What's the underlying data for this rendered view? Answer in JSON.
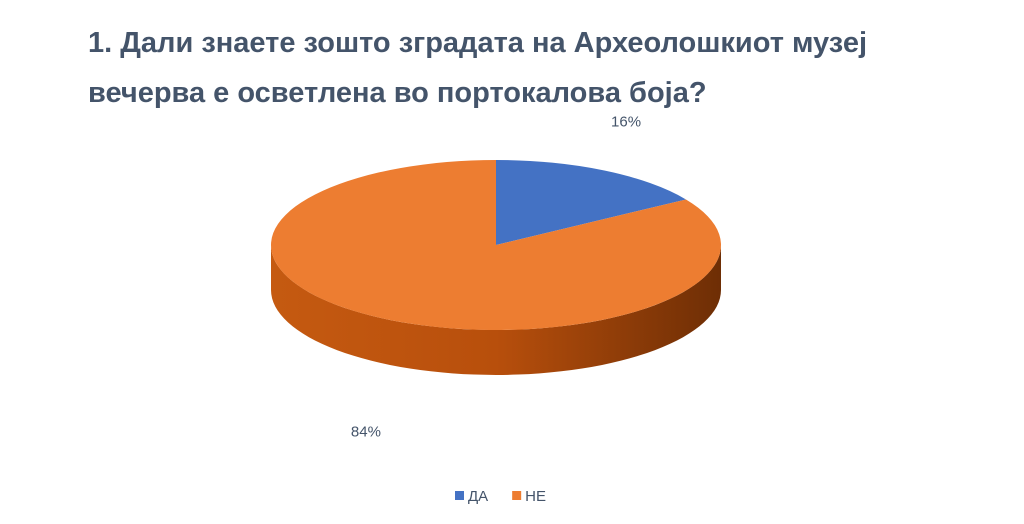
{
  "chart_data": {
    "type": "pie3d",
    "title": "1. Дали знаете зошто зградата на Археолошкиот музеј вечерва е осветлена во портокалова боја?",
    "categories": [
      "ДА",
      "НЕ"
    ],
    "values": [
      16,
      84
    ],
    "value_labels": [
      "16%",
      "84%"
    ],
    "colors": [
      "#4472c4",
      "#ed7d31"
    ],
    "legend": "bottom"
  }
}
